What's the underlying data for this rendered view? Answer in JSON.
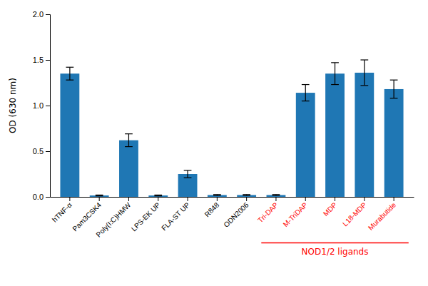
{
  "chart_data": {
    "type": "bar",
    "ylabel": "OD (630 nm)",
    "categories": [
      "hTNF-α",
      "Pam3CSK4",
      "Poly(I:C)HMW",
      "LPS-EK UP",
      "FLA-ST UP",
      "R848",
      "ODN2006",
      "Tri-DAP",
      "M-TriDAP",
      "MDP",
      "L18-MDP",
      "Murabutide"
    ],
    "values": [
      1.35,
      0.015,
      0.62,
      0.015,
      0.25,
      0.02,
      0.02,
      0.02,
      1.14,
      1.35,
      1.36,
      1.18
    ],
    "errors": [
      0.07,
      0.005,
      0.07,
      0.005,
      0.04,
      0.005,
      0.005,
      0.005,
      0.09,
      0.12,
      0.14,
      0.1
    ],
    "ylim": [
      0,
      2.0
    ],
    "yticks": [
      {
        "value": 0.0,
        "label": "0.0"
      },
      0.5,
      {
        "value": 1.0,
        "label": "1.0"
      },
      1.5,
      {
        "value": 2.0,
        "label": "2.0"
      }
    ],
    "grid": false,
    "annotations": [
      {
        "text": "NOD1/2 ligands",
        "from": "Tri-DAP",
        "to": "Murabutide",
        "color": "#FF0000"
      }
    ]
  }
}
